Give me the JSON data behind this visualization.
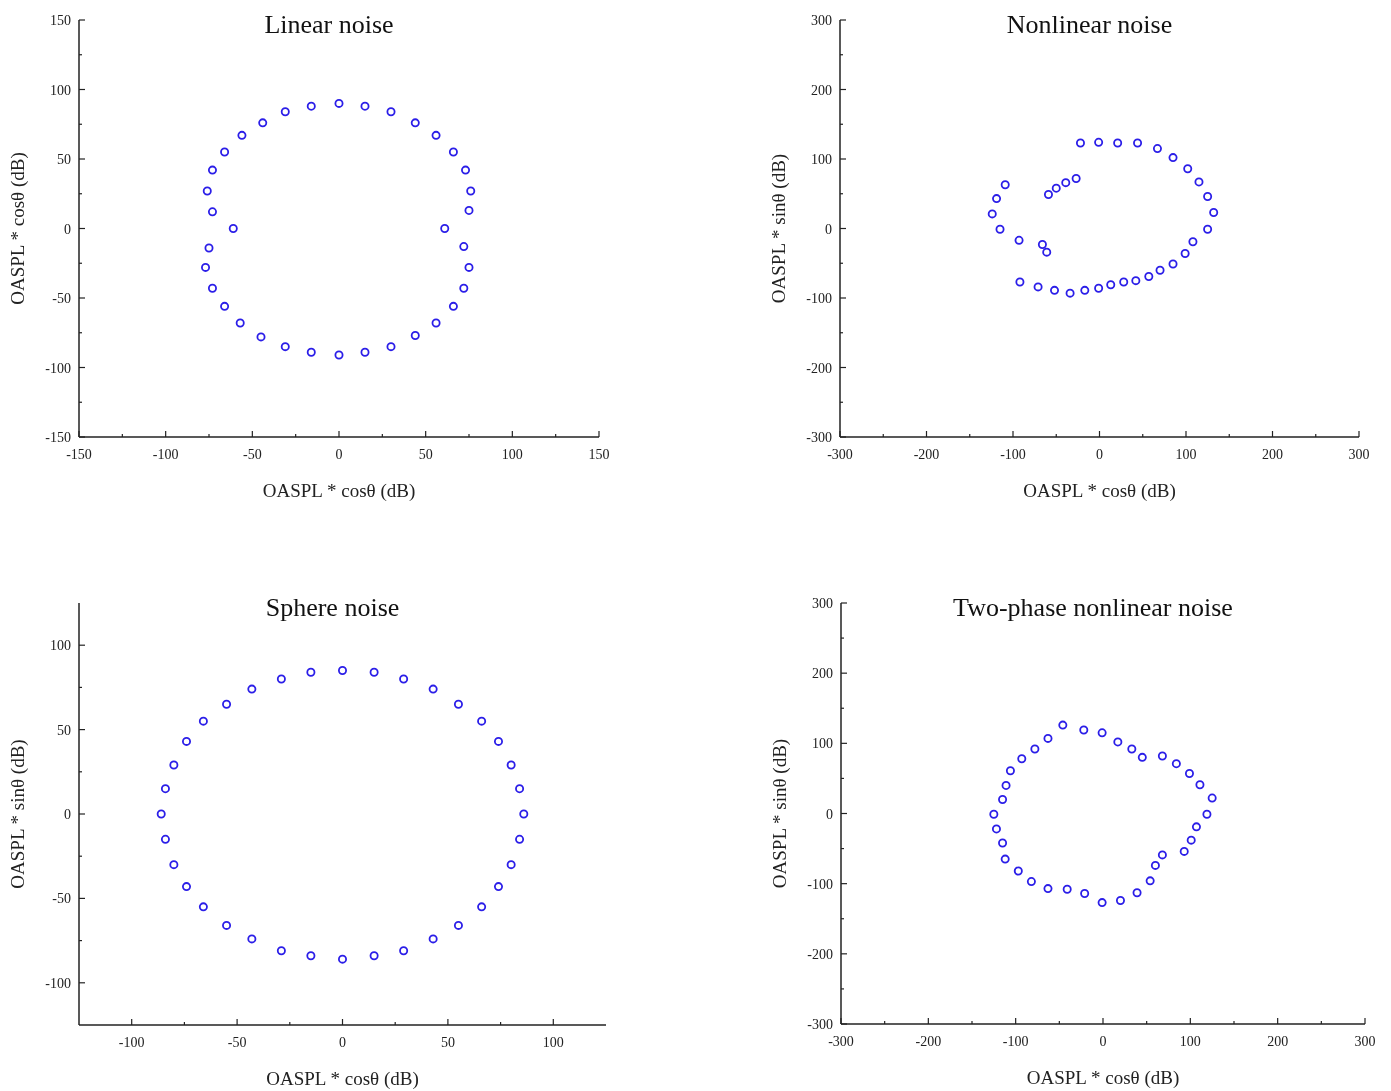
{
  "chart_data": [
    {
      "type": "scatter",
      "title": "Linear noise",
      "xlabel": "OASPL * cosθ (dB)",
      "ylabel": "OASPL * cosθ (dB)",
      "marker": "circle",
      "grid": false,
      "xlim": [
        -150,
        150
      ],
      "ylim": [
        -150,
        150
      ],
      "xticks": [
        -150,
        {
          "value": -125,
          "label": null
        },
        -100,
        {
          "value": -75,
          "label": null
        },
        -50,
        {
          "value": -25,
          "label": null
        },
        0,
        {
          "value": 25,
          "label": null
        },
        50,
        {
          "value": 75,
          "label": null
        },
        100,
        {
          "value": 125,
          "label": null
        },
        150
      ],
      "yticks": [
        -150,
        {
          "value": -125,
          "label": null
        },
        -100,
        {
          "value": -75,
          "label": null
        },
        -50,
        {
          "value": -25,
          "label": null
        },
        0,
        {
          "value": 25,
          "label": null
        },
        50,
        {
          "value": 75,
          "label": null
        },
        100,
        {
          "value": 125,
          "label": null
        },
        150
      ],
      "series": [
        {
          "color": "#2b1ee8",
          "x": [
            0,
            15,
            30,
            44,
            56,
            66,
            73,
            76,
            75,
            61,
            72,
            75,
            72,
            66,
            56,
            44,
            30,
            15,
            0,
            -16,
            -31,
            -44,
            -56,
            -66,
            -73,
            -76,
            -73,
            -61,
            -75,
            -77,
            -73,
            -66,
            -57,
            -45,
            -31,
            -16
          ],
          "values": [
            90,
            88,
            84,
            76,
            67,
            55,
            42,
            27,
            13,
            0,
            -13,
            -28,
            -43,
            -56,
            -68,
            -77,
            -85,
            -89,
            -91,
            88,
            84,
            76,
            67,
            55,
            42,
            27,
            12,
            0,
            -14,
            -28,
            -43,
            -56,
            -68,
            -78,
            -85,
            -89
          ]
        }
      ]
    },
    {
      "type": "scatter",
      "title": "Nonlinear noise",
      "xlabel": "OASPL * cosθ (dB)",
      "ylabel": "OASPL * sinθ (dB)",
      "marker": "circle",
      "grid": false,
      "xlim": [
        -300,
        300
      ],
      "ylim": [
        -300,
        300
      ],
      "xticks": [
        -300,
        {
          "value": -250,
          "label": null
        },
        -200,
        {
          "value": -150,
          "label": null
        },
        -100,
        {
          "value": -50,
          "label": null
        },
        0,
        {
          "value": 50,
          "label": null
        },
        100,
        {
          "value": 150,
          "label": null
        },
        200,
        {
          "value": 250,
          "label": null
        },
        300
      ],
      "yticks": [
        -300,
        {
          "value": -250,
          "label": null
        },
        -200,
        {
          "value": -150,
          "label": null
        },
        -100,
        {
          "value": -50,
          "label": null
        },
        0,
        {
          "value": 50,
          "label": null
        },
        100,
        {
          "value": 150,
          "label": null
        },
        200,
        {
          "value": 250,
          "label": null
        },
        300
      ],
      "series": [
        {
          "color": "#2b1ee8",
          "x": [
            -22,
            -1,
            21,
            44,
            67,
            85,
            102,
            115,
            125,
            132,
            125,
            108,
            99,
            85,
            70,
            57,
            42,
            28,
            13,
            -1,
            -17,
            -34,
            -52,
            -71,
            -92,
            -93,
            -66,
            -61,
            -115,
            -124,
            -119,
            -109,
            -59,
            -50,
            -39,
            -27
          ],
          "values": [
            123,
            124,
            123,
            123,
            115,
            102,
            86,
            67,
            46,
            23,
            -1,
            -19,
            -36,
            -51,
            -60,
            -69,
            -75,
            -77,
            -81,
            -86,
            -89,
            -93,
            -89,
            -84,
            -77,
            -17,
            -23,
            -34,
            -1,
            21,
            43,
            63,
            49,
            58,
            66,
            72
          ]
        }
      ]
    },
    {
      "type": "scatter",
      "title": "Sphere noise",
      "xlabel": "OASPL * cosθ (dB)",
      "ylabel": "OASPL * sinθ (dB)",
      "marker": "circle",
      "grid": false,
      "xlim": [
        -125,
        125
      ],
      "ylim": [
        -125,
        125
      ],
      "xticks": [
        -100,
        {
          "value": -75,
          "label": null
        },
        -50,
        {
          "value": -25,
          "label": null
        },
        0,
        {
          "value": 25,
          "label": null
        },
        50,
        {
          "value": 75,
          "label": null
        },
        100
      ],
      "yticks": [
        -100,
        {
          "value": -75,
          "label": null
        },
        -50,
        {
          "value": -25,
          "label": null
        },
        0,
        {
          "value": 25,
          "label": null
        },
        50,
        {
          "value": 75,
          "label": null
        },
        100
      ],
      "series": [
        {
          "color": "#2b1ee8",
          "x": [
            0,
            15,
            29,
            43,
            55,
            66,
            74,
            80,
            84,
            86,
            84,
            80,
            74,
            66,
            55,
            43,
            29,
            15,
            0,
            -15,
            -29,
            -43,
            -55,
            -66,
            -74,
            -80,
            -84,
            -86,
            -84,
            -80,
            -74,
            -66,
            -55,
            -43,
            -29,
            -15
          ],
          "values": [
            85,
            84,
            80,
            74,
            65,
            55,
            43,
            29,
            15,
            0,
            -15,
            -30,
            -43,
            -55,
            -66,
            -74,
            -81,
            -84,
            -86,
            -84,
            -81,
            -74,
            -66,
            -55,
            -43,
            -30,
            -15,
            0,
            15,
            29,
            43,
            55,
            65,
            74,
            80,
            84
          ]
        }
      ]
    },
    {
      "type": "scatter",
      "title": "Two-phase nonlinear noise",
      "xlabel": "OASPL * cosθ (dB)",
      "ylabel": "OASPL * sinθ (dB)",
      "marker": "circle",
      "grid": false,
      "xlim": [
        -300,
        300
      ],
      "ylim": [
        -300,
        300
      ],
      "xticks": [
        -300,
        {
          "value": -250,
          "label": null
        },
        -200,
        {
          "value": -150,
          "label": null
        },
        -100,
        {
          "value": -50,
          "label": null
        },
        0,
        {
          "value": 50,
          "label": null
        },
        100,
        {
          "value": 150,
          "label": null
        },
        200,
        {
          "value": 250,
          "label": null
        },
        300
      ],
      "yticks": [
        -300,
        {
          "value": -250,
          "label": null
        },
        -200,
        {
          "value": -150,
          "label": null
        },
        -100,
        {
          "value": -50,
          "label": null
        },
        0,
        {
          "value": 50,
          "label": null
        },
        100,
        {
          "value": 150,
          "label": null
        },
        200,
        {
          "value": 250,
          "label": null
        },
        300
      ],
      "series": [
        {
          "color": "#2b1ee8",
          "x": [
            -46,
            -22,
            -1,
            17,
            33,
            45,
            68,
            84,
            99,
            111,
            125,
            119,
            107,
            101,
            93,
            68,
            60,
            54,
            39,
            20,
            -1,
            -21,
            -41,
            -63,
            -82,
            -97,
            -112,
            -115,
            -122,
            -125,
            -115,
            -111,
            -106,
            -93,
            -78,
            -63
          ],
          "values": [
            126,
            119,
            115,
            102,
            92,
            80,
            82,
            71,
            57,
            41,
            22,
            -1,
            -19,
            -38,
            -54,
            -59,
            -74,
            -96,
            -113,
            -124,
            -127,
            -114,
            -108,
            -107,
            -97,
            -82,
            -65,
            -42,
            -22,
            -1,
            20,
            40,
            61,
            78,
            92,
            107
          ]
        }
      ]
    }
  ]
}
